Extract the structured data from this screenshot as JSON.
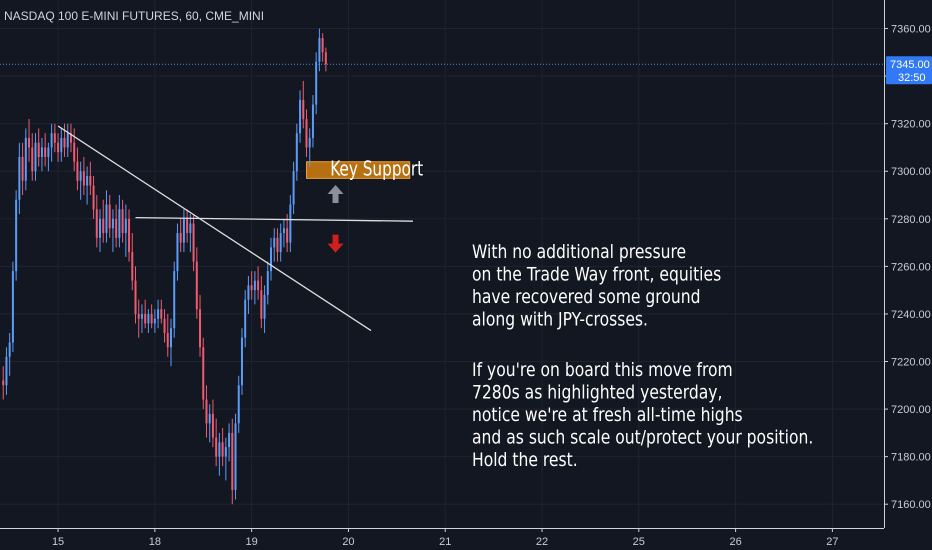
{
  "header": {
    "symbol_title": "NASDAQ 100 E-MINI FUTURES, 60, CME_MINI"
  },
  "colors": {
    "background": "#131722",
    "grid": "#1f2430",
    "up": "#5b9cf6",
    "down": "#ef5b6f",
    "axis_text": "#c8ccd6",
    "price_line": "#4a90e2",
    "support_zone": "#d4800f",
    "trendline": "#e0e0e0",
    "arrow_up": "#8a8f99",
    "arrow_down": "#d01f1f",
    "annotation_text": "#ffffff"
  },
  "chart_data": {
    "type": "candlestick",
    "title": "NASDAQ 100 E-MINI FUTURES, 60, CME_MINI",
    "interval": "60",
    "y_axis": {
      "side": "right",
      "min": 7150,
      "max": 7372,
      "tick_labels": [
        "7360.00",
        "7340.00",
        "7320.00",
        "7300.00",
        "7280.00",
        "7260.00",
        "7240.00",
        "7220.00",
        "7200.00",
        "7180.00",
        "7160.00"
      ],
      "ticks": [
        7360,
        7340,
        7320,
        7300,
        7280,
        7260,
        7240,
        7220,
        7200,
        7180,
        7160
      ]
    },
    "x_axis": {
      "tick_labels": [
        "15",
        "18",
        "19",
        "20",
        "21",
        "22",
        "25",
        "26",
        "27"
      ],
      "ticks": [
        6,
        36,
        66,
        96,
        126,
        156,
        186,
        216,
        246
      ],
      "min": -12,
      "max": 262
    },
    "grid": true,
    "last_price": {
      "value": 7345.0,
      "label": "7345.00",
      "countdown": "32:50"
    },
    "candles": [
      {
        "x": -11,
        "o": 7212,
        "h": 7218,
        "l": 7204,
        "c": 7210
      },
      {
        "x": -10,
        "o": 7210,
        "h": 7226,
        "l": 7206,
        "c": 7222
      },
      {
        "x": -9,
        "o": 7222,
        "h": 7232,
        "l": 7214,
        "c": 7228
      },
      {
        "x": -8,
        "o": 7228,
        "h": 7262,
        "l": 7224,
        "c": 7258
      },
      {
        "x": -7,
        "o": 7258,
        "h": 7292,
        "l": 7254,
        "c": 7288
      },
      {
        "x": -6,
        "o": 7288,
        "h": 7312,
        "l": 7282,
        "c": 7306
      },
      {
        "x": -5,
        "o": 7306,
        "h": 7312,
        "l": 7290,
        "c": 7296
      },
      {
        "x": -4,
        "o": 7296,
        "h": 7318,
        "l": 7292,
        "c": 7314
      },
      {
        "x": -3,
        "o": 7314,
        "h": 7322,
        "l": 7304,
        "c": 7310
      },
      {
        "x": -2,
        "o": 7310,
        "h": 7316,
        "l": 7296,
        "c": 7300
      },
      {
        "x": -1,
        "o": 7300,
        "h": 7316,
        "l": 7296,
        "c": 7312
      },
      {
        "x": 0,
        "o": 7312,
        "h": 7318,
        "l": 7302,
        "c": 7306
      },
      {
        "x": 1,
        "o": 7306,
        "h": 7314,
        "l": 7300,
        "c": 7310
      },
      {
        "x": 2,
        "o": 7310,
        "h": 7316,
        "l": 7302,
        "c": 7306
      },
      {
        "x": 3,
        "o": 7306,
        "h": 7312,
        "l": 7300,
        "c": 7310
      },
      {
        "x": 4,
        "o": 7310,
        "h": 7320,
        "l": 7304,
        "c": 7316
      },
      {
        "x": 5,
        "o": 7316,
        "h": 7320,
        "l": 7308,
        "c": 7312
      },
      {
        "x": 6,
        "o": 7312,
        "h": 7316,
        "l": 7304,
        "c": 7308
      },
      {
        "x": 7,
        "o": 7308,
        "h": 7318,
        "l": 7304,
        "c": 7314
      },
      {
        "x": 8,
        "o": 7314,
        "h": 7320,
        "l": 7306,
        "c": 7310
      },
      {
        "x": 9,
        "o": 7310,
        "h": 7320,
        "l": 7306,
        "c": 7316
      },
      {
        "x": 10,
        "o": 7316,
        "h": 7320,
        "l": 7308,
        "c": 7312
      },
      {
        "x": 11,
        "o": 7312,
        "h": 7318,
        "l": 7300,
        "c": 7304
      },
      {
        "x": 12,
        "o": 7304,
        "h": 7310,
        "l": 7292,
        "c": 7296
      },
      {
        "x": 13,
        "o": 7296,
        "h": 7304,
        "l": 7288,
        "c": 7300
      },
      {
        "x": 14,
        "o": 7300,
        "h": 7306,
        "l": 7290,
        "c": 7294
      },
      {
        "x": 15,
        "o": 7294,
        "h": 7302,
        "l": 7286,
        "c": 7298
      },
      {
        "x": 16,
        "o": 7298,
        "h": 7304,
        "l": 7290,
        "c": 7294
      },
      {
        "x": 17,
        "o": 7294,
        "h": 7298,
        "l": 7280,
        "c": 7284
      },
      {
        "x": 18,
        "o": 7284,
        "h": 7290,
        "l": 7268,
        "c": 7272
      },
      {
        "x": 19,
        "o": 7272,
        "h": 7284,
        "l": 7266,
        "c": 7280
      },
      {
        "x": 20,
        "o": 7280,
        "h": 7288,
        "l": 7270,
        "c": 7274
      },
      {
        "x": 21,
        "o": 7274,
        "h": 7292,
        "l": 7270,
        "c": 7286
      },
      {
        "x": 22,
        "o": 7286,
        "h": 7290,
        "l": 7272,
        "c": 7276
      },
      {
        "x": 23,
        "o": 7276,
        "h": 7284,
        "l": 7266,
        "c": 7280
      },
      {
        "x": 24,
        "o": 7280,
        "h": 7286,
        "l": 7268,
        "c": 7272
      },
      {
        "x": 25,
        "o": 7272,
        "h": 7290,
        "l": 7268,
        "c": 7284
      },
      {
        "x": 26,
        "o": 7284,
        "h": 7288,
        "l": 7270,
        "c": 7274
      },
      {
        "x": 27,
        "o": 7274,
        "h": 7286,
        "l": 7264,
        "c": 7280
      },
      {
        "x": 28,
        "o": 7280,
        "h": 7284,
        "l": 7262,
        "c": 7266
      },
      {
        "x": 29,
        "o": 7266,
        "h": 7274,
        "l": 7250,
        "c": 7254
      },
      {
        "x": 30,
        "o": 7254,
        "h": 7260,
        "l": 7236,
        "c": 7240
      },
      {
        "x": 31,
        "o": 7240,
        "h": 7246,
        "l": 7230,
        "c": 7238
      },
      {
        "x": 32,
        "o": 7238,
        "h": 7244,
        "l": 7232,
        "c": 7240
      },
      {
        "x": 33,
        "o": 7240,
        "h": 7246,
        "l": 7234,
        "c": 7236
      },
      {
        "x": 34,
        "o": 7236,
        "h": 7242,
        "l": 7232,
        "c": 7240
      },
      {
        "x": 35,
        "o": 7240,
        "h": 7244,
        "l": 7234,
        "c": 7236
      },
      {
        "x": 36,
        "o": 7236,
        "h": 7242,
        "l": 7232,
        "c": 7238
      },
      {
        "x": 37,
        "o": 7238,
        "h": 7246,
        "l": 7234,
        "c": 7242
      },
      {
        "x": 38,
        "o": 7242,
        "h": 7246,
        "l": 7236,
        "c": 7238
      },
      {
        "x": 39,
        "o": 7238,
        "h": 7242,
        "l": 7228,
        "c": 7232
      },
      {
        "x": 40,
        "o": 7232,
        "h": 7240,
        "l": 7222,
        "c": 7226
      },
      {
        "x": 41,
        "o": 7226,
        "h": 7238,
        "l": 7218,
        "c": 7234
      },
      {
        "x": 42,
        "o": 7234,
        "h": 7262,
        "l": 7230,
        "c": 7258
      },
      {
        "x": 43,
        "o": 7258,
        "h": 7278,
        "l": 7254,
        "c": 7274
      },
      {
        "x": 44,
        "o": 7274,
        "h": 7280,
        "l": 7266,
        "c": 7270
      },
      {
        "x": 45,
        "o": 7270,
        "h": 7284,
        "l": 7266,
        "c": 7280
      },
      {
        "x": 46,
        "o": 7280,
        "h": 7284,
        "l": 7270,
        "c": 7274
      },
      {
        "x": 47,
        "o": 7274,
        "h": 7282,
        "l": 7266,
        "c": 7278
      },
      {
        "x": 48,
        "o": 7278,
        "h": 7282,
        "l": 7258,
        "c": 7262
      },
      {
        "x": 49,
        "o": 7262,
        "h": 7268,
        "l": 7238,
        "c": 7242
      },
      {
        "x": 50,
        "o": 7242,
        "h": 7248,
        "l": 7222,
        "c": 7226
      },
      {
        "x": 51,
        "o": 7226,
        "h": 7230,
        "l": 7200,
        "c": 7204
      },
      {
        "x": 52,
        "o": 7204,
        "h": 7210,
        "l": 7188,
        "c": 7194
      },
      {
        "x": 53,
        "o": 7194,
        "h": 7202,
        "l": 7186,
        "c": 7198
      },
      {
        "x": 54,
        "o": 7198,
        "h": 7204,
        "l": 7184,
        "c": 7188
      },
      {
        "x": 55,
        "o": 7188,
        "h": 7196,
        "l": 7176,
        "c": 7180
      },
      {
        "x": 56,
        "o": 7180,
        "h": 7190,
        "l": 7172,
        "c": 7186
      },
      {
        "x": 57,
        "o": 7186,
        "h": 7192,
        "l": 7176,
        "c": 7180
      },
      {
        "x": 58,
        "o": 7180,
        "h": 7188,
        "l": 7170,
        "c": 7184
      },
      {
        "x": 59,
        "o": 7184,
        "h": 7194,
        "l": 7178,
        "c": 7190
      },
      {
        "x": 60,
        "o": 7190,
        "h": 7196,
        "l": 7160,
        "c": 7166
      },
      {
        "x": 61,
        "o": 7166,
        "h": 7198,
        "l": 7162,
        "c": 7194
      },
      {
        "x": 62,
        "o": 7194,
        "h": 7214,
        "l": 7190,
        "c": 7210
      },
      {
        "x": 63,
        "o": 7210,
        "h": 7234,
        "l": 7206,
        "c": 7230
      },
      {
        "x": 64,
        "o": 7230,
        "h": 7250,
        "l": 7226,
        "c": 7246
      },
      {
        "x": 65,
        "o": 7246,
        "h": 7256,
        "l": 7240,
        "c": 7252
      },
      {
        "x": 66,
        "o": 7252,
        "h": 7258,
        "l": 7246,
        "c": 7250
      },
      {
        "x": 67,
        "o": 7250,
        "h": 7258,
        "l": 7244,
        "c": 7254
      },
      {
        "x": 68,
        "o": 7254,
        "h": 7260,
        "l": 7246,
        "c": 7250
      },
      {
        "x": 69,
        "o": 7250,
        "h": 7256,
        "l": 7234,
        "c": 7238
      },
      {
        "x": 70,
        "o": 7238,
        "h": 7252,
        "l": 7232,
        "c": 7248
      },
      {
        "x": 71,
        "o": 7248,
        "h": 7262,
        "l": 7244,
        "c": 7258
      },
      {
        "x": 72,
        "o": 7258,
        "h": 7272,
        "l": 7254,
        "c": 7268
      },
      {
        "x": 73,
        "o": 7268,
        "h": 7276,
        "l": 7262,
        "c": 7272
      },
      {
        "x": 74,
        "o": 7272,
        "h": 7276,
        "l": 7262,
        "c": 7266
      },
      {
        "x": 75,
        "o": 7266,
        "h": 7278,
        "l": 7262,
        "c": 7274
      },
      {
        "x": 76,
        "o": 7274,
        "h": 7280,
        "l": 7268,
        "c": 7276
      },
      {
        "x": 77,
        "o": 7276,
        "h": 7282,
        "l": 7266,
        "c": 7270
      },
      {
        "x": 78,
        "o": 7270,
        "h": 7290,
        "l": 7266,
        "c": 7286
      },
      {
        "x": 79,
        "o": 7286,
        "h": 7304,
        "l": 7282,
        "c": 7300
      },
      {
        "x": 80,
        "o": 7300,
        "h": 7320,
        "l": 7296,
        "c": 7316
      },
      {
        "x": 81,
        "o": 7316,
        "h": 7334,
        "l": 7312,
        "c": 7330
      },
      {
        "x": 82,
        "o": 7330,
        "h": 7338,
        "l": 7318,
        "c": 7322
      },
      {
        "x": 83,
        "o": 7322,
        "h": 7326,
        "l": 7306,
        "c": 7310
      },
      {
        "x": 84,
        "o": 7310,
        "h": 7318,
        "l": 7302,
        "c": 7314
      },
      {
        "x": 85,
        "o": 7314,
        "h": 7332,
        "l": 7310,
        "c": 7328
      },
      {
        "x": 86,
        "o": 7328,
        "h": 7350,
        "l": 7324,
        "c": 7346
      },
      {
        "x": 87,
        "o": 7346,
        "h": 7360,
        "l": 7342,
        "c": 7356
      },
      {
        "x": 88,
        "o": 7356,
        "h": 7358,
        "l": 7346,
        "c": 7350
      },
      {
        "x": 89,
        "o": 7350,
        "h": 7352,
        "l": 7342,
        "c": 7345
      }
    ],
    "annotations": {
      "support_zone": {
        "label": "Key Support",
        "x1": 83,
        "x2": 115,
        "y_top": 7304,
        "y_bottom": 7297
      },
      "trendline": {
        "x1": 6,
        "y1": 7319,
        "x2": 103,
        "y2": 7233
      },
      "horizontal_level": {
        "x1": 30,
        "y1": 7280.5,
        "x2": 116,
        "y2": 7279
      },
      "arrow_up": {
        "x": 92,
        "y": 7290
      },
      "arrow_down": {
        "x": 92,
        "y": 7270
      }
    }
  },
  "annotation_text": {
    "paragraph1": [
      "With no additional pressure",
      "on the Trade Way front, equities",
      "have recovered some ground",
      "along with JPY-crosses."
    ],
    "paragraph2": [
      "If you're on board this move from",
      "7280s as highlighted yesterday,",
      "notice we're at fresh all-time highs",
      "and as such scale out/protect your position.",
      "Hold the rest."
    ]
  }
}
